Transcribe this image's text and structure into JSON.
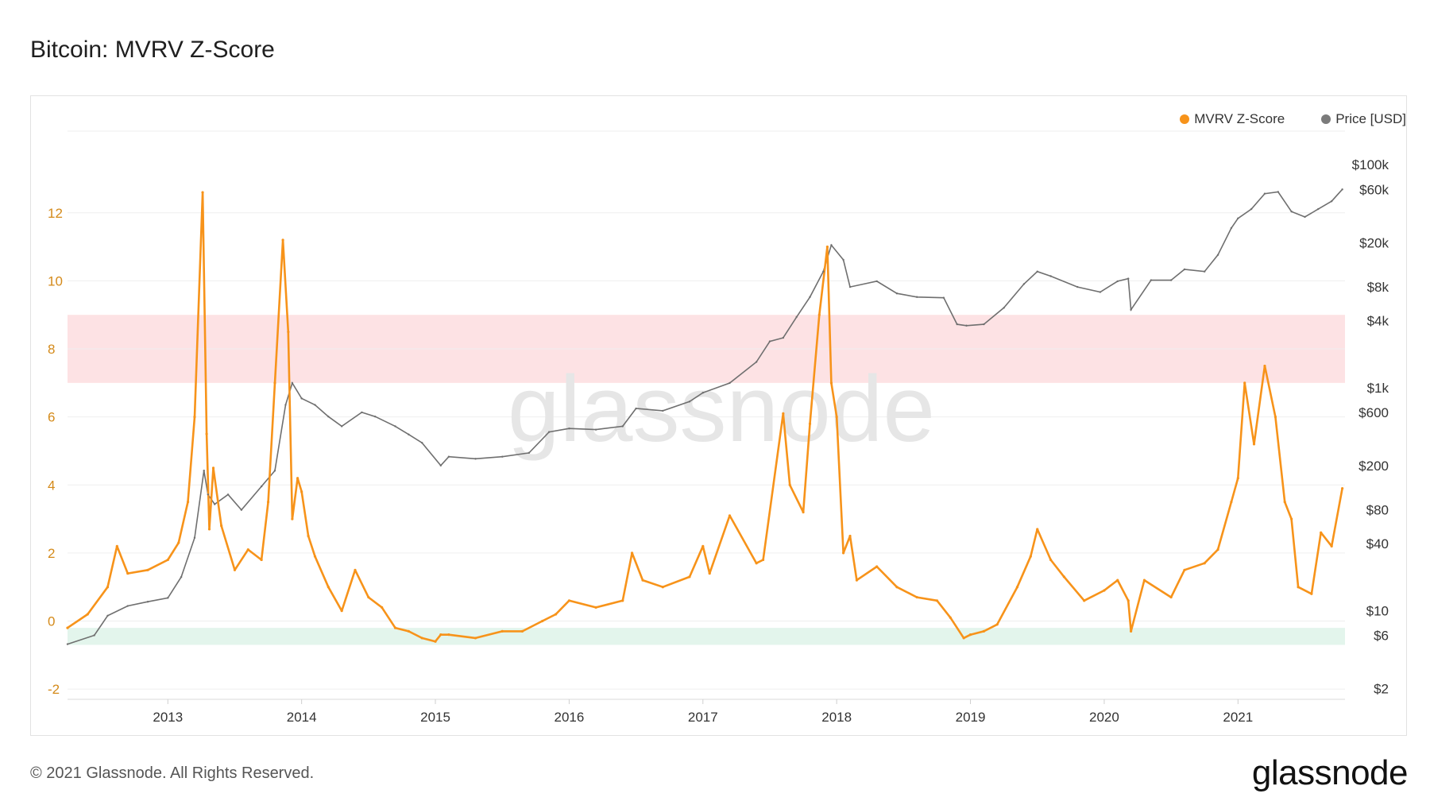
{
  "page": {
    "title": "Bitcoin: MVRV Z-Score",
    "footer": "© 2021 Glassnode. All Rights Reserved.",
    "logo": "glassnode",
    "watermark": "glassnode"
  },
  "legend": [
    {
      "label": "MVRV Z-Score",
      "color": "#f7931a"
    },
    {
      "label": "Price [USD]",
      "color": "#7b7b7b"
    }
  ],
  "colors": {
    "zscore": "#f7931a",
    "price": "#6f6f6f",
    "zone_high": "#fde2e4",
    "zone_low": "#e3f5ec",
    "left_axis_text": "#d48a1a",
    "grid": "#efefef"
  },
  "chart_data": {
    "type": "line",
    "title": "Bitcoin: MVRV Z-Score",
    "xlim": [
      2012.25,
      2021.8
    ],
    "x_ticks": [
      2013,
      2014,
      2015,
      2016,
      2017,
      2018,
      2019,
      2020,
      2021
    ],
    "x_tick_labels": [
      "2013",
      "2014",
      "2015",
      "2016",
      "2017",
      "2018",
      "2019",
      "2020",
      "2021"
    ],
    "y_left": {
      "range": [
        -2.3,
        14.4
      ],
      "ticks": [
        -2,
        0,
        2,
        4,
        6,
        8,
        10,
        12
      ],
      "tick_labels": [
        "-2",
        "0",
        "2",
        "4",
        "6",
        "8",
        "10",
        "12"
      ]
    },
    "y_right": {
      "scale": "log",
      "range_usd": [
        1.6,
        200000
      ],
      "ticks": [
        2,
        6,
        10,
        40,
        80,
        200,
        600,
        1000,
        4000,
        8000,
        20000,
        60000,
        100000
      ],
      "tick_labels": [
        "$2",
        "$6",
        "$10",
        "$40",
        "$80",
        "$200",
        "$600",
        "$1k",
        "$4k",
        "$8k",
        "$20k",
        "$60k",
        "$100k"
      ]
    },
    "zones": [
      {
        "from": 7,
        "to": 9,
        "color": "#fde2e4"
      },
      {
        "from": -0.7,
        "to": -0.2,
        "color": "#e3f5ec"
      }
    ],
    "series": [
      {
        "name": "MVRV Z-Score",
        "axis": "left",
        "x": [
          2012.25,
          2012.4,
          2012.55,
          2012.62,
          2012.7,
          2012.85,
          2013.0,
          2013.08,
          2013.15,
          2013.2,
          2013.26,
          2013.29,
          2013.31,
          2013.34,
          2013.4,
          2013.5,
          2013.6,
          2013.7,
          2013.75,
          2013.8,
          2013.86,
          2013.9,
          2013.93,
          2013.97,
          2014.0,
          2014.05,
          2014.1,
          2014.2,
          2014.3,
          2014.4,
          2014.5,
          2014.6,
          2014.7,
          2014.8,
          2014.9,
          2015.0,
          2015.04,
          2015.1,
          2015.3,
          2015.5,
          2015.65,
          2015.8,
          2015.9,
          2016.0,
          2016.2,
          2016.4,
          2016.47,
          2016.55,
          2016.7,
          2016.9,
          2017.0,
          2017.05,
          2017.2,
          2017.4,
          2017.45,
          2017.6,
          2017.65,
          2017.75,
          2017.8,
          2017.87,
          2017.93,
          2017.96,
          2018.0,
          2018.05,
          2018.1,
          2018.15,
          2018.3,
          2018.45,
          2018.6,
          2018.75,
          2018.85,
          2018.95,
          2019.0,
          2019.1,
          2019.2,
          2019.35,
          2019.45,
          2019.5,
          2019.6,
          2019.7,
          2019.85,
          2020.0,
          2020.1,
          2020.18,
          2020.2,
          2020.3,
          2020.5,
          2020.6,
          2020.75,
          2020.85,
          2020.95,
          2021.0,
          2021.05,
          2021.12,
          2021.2,
          2021.28,
          2021.35,
          2021.4,
          2021.45,
          2021.55,
          2021.62,
          2021.7,
          2021.78
        ],
        "y": [
          -0.2,
          0.2,
          1.0,
          2.2,
          1.4,
          1.5,
          1.8,
          2.3,
          3.5,
          6.0,
          12.6,
          5.5,
          2.7,
          4.5,
          2.8,
          1.5,
          2.1,
          1.8,
          3.5,
          7.0,
          11.2,
          8.5,
          3.0,
          4.2,
          3.8,
          2.5,
          1.9,
          1.0,
          0.3,
          1.5,
          0.7,
          0.4,
          -0.2,
          -0.3,
          -0.5,
          -0.6,
          -0.4,
          -0.4,
          -0.5,
          -0.3,
          -0.3,
          0.0,
          0.2,
          0.6,
          0.4,
          0.6,
          2.0,
          1.2,
          1.0,
          1.3,
          2.2,
          1.4,
          3.1,
          1.7,
          1.8,
          6.1,
          4.0,
          3.2,
          5.8,
          9.0,
          11.0,
          7.0,
          6.0,
          2.0,
          2.5,
          1.2,
          1.6,
          1.0,
          0.7,
          0.6,
          0.1,
          -0.5,
          -0.4,
          -0.3,
          -0.1,
          1.0,
          1.9,
          2.7,
          1.8,
          1.3,
          0.6,
          0.9,
          1.2,
          0.6,
          -0.3,
          1.2,
          0.7,
          1.5,
          1.7,
          2.1,
          3.5,
          4.2,
          7.0,
          5.2,
          7.5,
          6.0,
          3.5,
          3.0,
          1.0,
          0.8,
          2.6,
          2.2,
          3.9
        ]
      },
      {
        "name": "Price [USD]",
        "axis": "right",
        "x": [
          2012.25,
          2012.45,
          2012.55,
          2012.7,
          2012.85,
          2013.0,
          2013.1,
          2013.2,
          2013.27,
          2013.3,
          2013.35,
          2013.45,
          2013.55,
          2013.7,
          2013.8,
          2013.88,
          2013.93,
          2014.0,
          2014.1,
          2014.2,
          2014.3,
          2014.45,
          2014.55,
          2014.7,
          2014.8,
          2014.9,
          2015.04,
          2015.1,
          2015.3,
          2015.5,
          2015.7,
          2015.85,
          2016.0,
          2016.2,
          2016.4,
          2016.5,
          2016.7,
          2016.9,
          2017.0,
          2017.2,
          2017.4,
          2017.5,
          2017.6,
          2017.7,
          2017.8,
          2017.9,
          2017.96,
          2018.05,
          2018.1,
          2018.3,
          2018.45,
          2018.6,
          2018.8,
          2018.9,
          2018.97,
          2019.1,
          2019.25,
          2019.4,
          2019.5,
          2019.6,
          2019.8,
          2019.97,
          2020.1,
          2020.18,
          2020.2,
          2020.35,
          2020.5,
          2020.6,
          2020.75,
          2020.85,
          2020.95,
          2021.0,
          2021.1,
          2021.2,
          2021.3,
          2021.4,
          2021.5,
          2021.6,
          2021.7,
          2021.78
        ],
        "y": [
          5,
          6,
          9,
          11,
          12,
          13,
          20,
          45,
          180,
          110,
          90,
          110,
          80,
          130,
          180,
          700,
          1100,
          800,
          700,
          550,
          450,
          600,
          550,
          450,
          380,
          320,
          200,
          240,
          230,
          240,
          260,
          400,
          430,
          420,
          450,
          650,
          620,
          750,
          900,
          1100,
          1700,
          2600,
          2800,
          4300,
          6500,
          11000,
          19000,
          14000,
          8000,
          9000,
          7000,
          6500,
          6400,
          3700,
          3600,
          3700,
          5200,
          8500,
          11000,
          10000,
          8000,
          7200,
          9000,
          9500,
          5000,
          9200,
          9200,
          11500,
          11000,
          15500,
          27000,
          33000,
          40000,
          55000,
          57000,
          38000,
          34000,
          40000,
          47000,
          60000
        ]
      }
    ]
  }
}
